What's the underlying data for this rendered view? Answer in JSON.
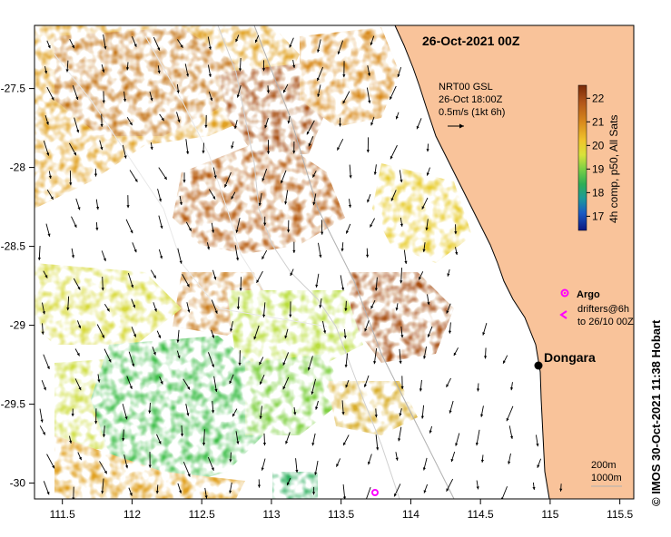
{
  "map": {
    "title": "26-Oct-2021 00Z",
    "lon_ticks": [
      "111.5",
      "112",
      "112.5",
      "113",
      "113.5",
      "114",
      "114.5",
      "115",
      "115.5"
    ],
    "lat_ticks": [
      "-27.5",
      "-28",
      "-28.5",
      "-29",
      "-29.5",
      "-30"
    ],
    "lon_range": [
      111.3,
      115.6
    ],
    "lat_range": [
      -30.1,
      -27.1
    ],
    "land_color": "#f9c39a",
    "current_info": {
      "line1": "NRT00 GSL",
      "line2": "26-Oct 18:00Z",
      "line3": "0.5m/s (1kt 6h)"
    },
    "colorbar": {
      "label": "4h comp, p50, All Sats",
      "ticks": [
        "22",
        "21",
        "20",
        "19",
        "18",
        "17"
      ],
      "colors": [
        "#7a2a08",
        "#a64c10",
        "#c9761a",
        "#e3a522",
        "#ead22c",
        "#cde23a",
        "#8fd843",
        "#3fbe4a",
        "#2ca07e",
        "#1c8aa8",
        "#1a55c0",
        "#101e8f"
      ]
    },
    "legend": {
      "argo_label": "Argo",
      "drifters_line1": "drifters@6h",
      "drifters_line2": "to 26/10 00Z",
      "argo_color": "#ff00ff"
    },
    "place": {
      "name": "Dongara"
    },
    "isobaths": {
      "line1": "200m",
      "line2": "1000m"
    },
    "credit": "© IMOS 30-Oct-2021 11:38 Hobart"
  }
}
